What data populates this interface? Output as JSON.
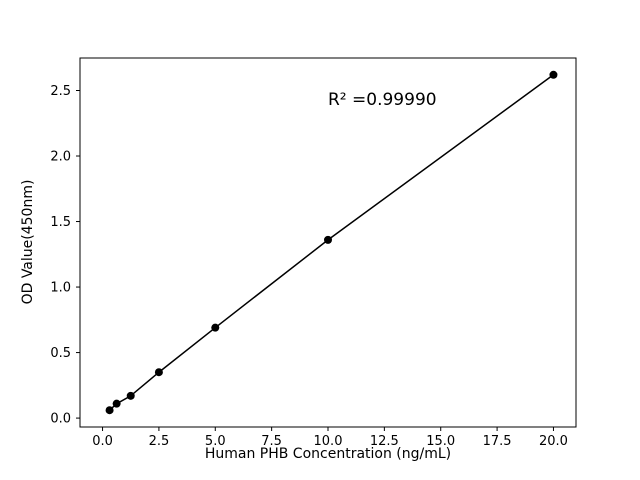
{
  "chart_data": {
    "type": "scatter",
    "title": "",
    "xlabel": "Human PHB Concentration (ng/mL)",
    "ylabel": "OD Value(450nm)",
    "annotation": "R² =0.99990",
    "x": [
      0.3125,
      0.625,
      1.25,
      2.5,
      5,
      10,
      20
    ],
    "y": [
      0.06,
      0.11,
      0.17,
      0.35,
      0.69,
      1.36,
      2.62
    ],
    "xlim": [
      -1.0,
      21.0
    ],
    "ylim": [
      -0.068,
      2.748
    ],
    "xticks": [
      0.0,
      2.5,
      5.0,
      7.5,
      10.0,
      12.5,
      15.0,
      17.5,
      20.0
    ],
    "yticks": [
      0.0,
      0.5,
      1.0,
      1.5,
      2.0,
      2.5
    ],
    "line_color": "#000000",
    "marker_color": "#000000",
    "marker_size": 4,
    "grid": false,
    "legend_position": "none",
    "trendline": true
  }
}
